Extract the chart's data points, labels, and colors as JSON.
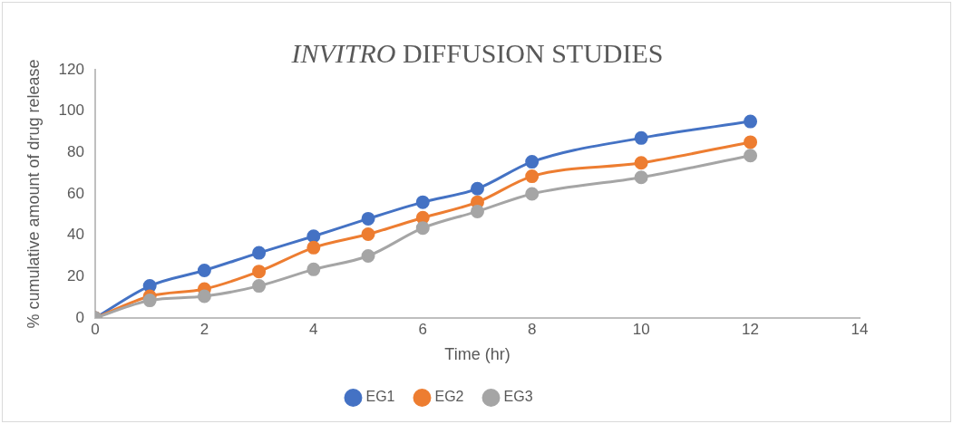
{
  "chart_data": {
    "type": "line",
    "title": "INVITRO DIFFUSION STUDIES",
    "xlabel": "Time (hr)",
    "ylabel": "% cumulative amount of drug release",
    "x": [
      0,
      1,
      2,
      3,
      4,
      5,
      6,
      7,
      8,
      10,
      12
    ],
    "series": [
      {
        "name": "EG1",
        "color": "#4472c4",
        "values": [
          0,
          15.5,
          23,
          31.5,
          39.5,
          48,
          56,
          62.5,
          75.5,
          87,
          95
        ]
      },
      {
        "name": "EG2",
        "color": "#ed7d31",
        "values": [
          0,
          10.5,
          14,
          22.5,
          34,
          40.5,
          48.5,
          56,
          68.5,
          75,
          85
        ]
      },
      {
        "name": "EG3",
        "color": "#a5a5a5",
        "values": [
          0,
          8.5,
          10.5,
          15.5,
          23.5,
          30,
          43.5,
          51.5,
          60,
          68,
          78.5
        ]
      }
    ],
    "xlim": [
      0,
      14
    ],
    "xticks": [
      0,
      2,
      4,
      6,
      8,
      10,
      12,
      14
    ],
    "ylim": [
      0,
      120
    ],
    "yticks": [
      0,
      20,
      40,
      60,
      80,
      100,
      120
    ],
    "grid": false,
    "legend": "bottom",
    "marker": "circle",
    "line_style": "solid"
  }
}
